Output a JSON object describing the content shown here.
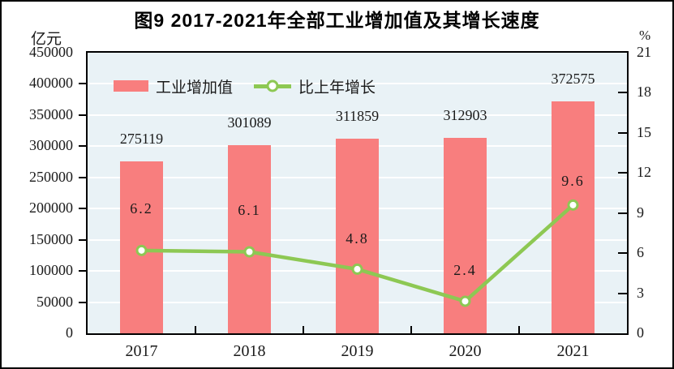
{
  "chart_data": {
    "type": "bar+line",
    "title": "图9  2017-2021年全部工业增加值及其增长速度",
    "categories": [
      "2017",
      "2018",
      "2019",
      "2020",
      "2021"
    ],
    "series": [
      {
        "name": "工业增加值",
        "type": "bar",
        "axis": "left",
        "color": "#F87E7E",
        "values": [
          275119,
          301089,
          311859,
          312903,
          372575
        ],
        "value_labels": [
          "275119",
          "301089",
          "311859",
          "312903",
          "372575"
        ]
      },
      {
        "name": "比上年增长",
        "type": "line",
        "axis": "right",
        "color": "#8DC853",
        "marker": "white-circle",
        "values": [
          6.2,
          6.1,
          4.8,
          2.4,
          9.6
        ],
        "value_labels": [
          "6.2",
          "6.1",
          "4.8",
          "2.4",
          "9.6"
        ]
      }
    ],
    "left_axis": {
      "unit": "亿元",
      "min": 0,
      "max": 450000,
      "step": 50000,
      "tick_labels": [
        "450000",
        "400000",
        "350000",
        "300000",
        "250000",
        "200000",
        "150000",
        "100000",
        "50000",
        "0"
      ]
    },
    "right_axis": {
      "unit": "%",
      "min": 0,
      "max": 21,
      "step": 3,
      "tick_labels": [
        "21",
        "18",
        "15",
        "12",
        "9",
        "6",
        "3",
        "0"
      ]
    },
    "plot_background": "#E9F2F6",
    "grid": {
      "horizontal": true,
      "color": "#FFFFFF"
    },
    "legend_position": "top-inside-left"
  }
}
